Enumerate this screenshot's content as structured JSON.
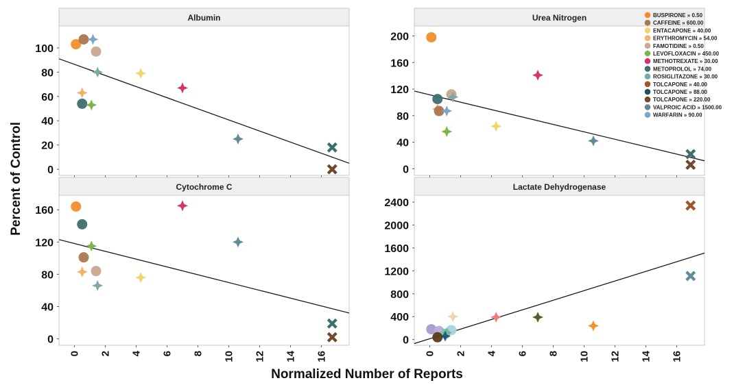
{
  "figure": {
    "ylabel": "Percent of Control",
    "xlabel": "Normalized Number of Reports"
  },
  "legend": {
    "placement": "top-right",
    "entries": [
      {
        "label": "BUSPIRONE » 0.50",
        "color": "#f28e2b"
      },
      {
        "label": "CAFFEINE » 600.00",
        "color": "#a9774f"
      },
      {
        "label": "ENTACAPONE » 40.00",
        "color": "#f2d56b"
      },
      {
        "label": "ERYTHROMYCIN » 54.00",
        "color": "#f5b06a"
      },
      {
        "label": "FAMOTIDINE » 0.50",
        "color": "#c9a690"
      },
      {
        "label": "LEVOFLOXACIN » 450.00",
        "color": "#7ab648"
      },
      {
        "label": "METHOTREXATE » 30.00",
        "color": "#d6336c"
      },
      {
        "label": "METOPROLOL » 74.00",
        "color": "#3f6e6e"
      },
      {
        "label": "ROSIGLITAZONE » 30.00",
        "color": "#7fa7a3"
      },
      {
        "label": "TOLCAPONE » 40.00",
        "color": "#a0562c"
      },
      {
        "label": "TOLCAPONE » 88.00",
        "color": "#264d5a"
      },
      {
        "label": "TOLCAPONE » 220.00",
        "color": "#6e4a2e"
      },
      {
        "label": "VALPROIC ACID » 1500.00",
        "color": "#5f8b96"
      },
      {
        "label": "WARFARIN » 90.00",
        "color": "#7ba6c8"
      }
    ]
  },
  "chart_data": [
    {
      "type": "scatter",
      "title": "Albumin",
      "xlim": [
        -1,
        17.8
      ],
      "ylim": [
        -5,
        118
      ],
      "xticks": [
        0,
        2,
        4,
        6,
        8,
        10,
        12,
        14,
        16
      ],
      "yticks": [
        0,
        20,
        40,
        60,
        80,
        100
      ],
      "trendline": [
        [
          -1,
          91
        ],
        [
          17.8,
          5
        ]
      ],
      "points": [
        {
          "x": 0.1,
          "y": 103,
          "shape": "circle",
          "color": "#f28e2b"
        },
        {
          "x": 0.6,
          "y": 107,
          "shape": "circle",
          "color": "#a9774f"
        },
        {
          "x": 1.2,
          "y": 107,
          "shape": "star",
          "color": "#7ba6c8"
        },
        {
          "x": 1.4,
          "y": 97,
          "shape": "circle",
          "color": "#c9a690"
        },
        {
          "x": 1.5,
          "y": 80,
          "shape": "star",
          "color": "#7fa7a3"
        },
        {
          "x": 4.3,
          "y": 79,
          "shape": "star",
          "color": "#f2d56b"
        },
        {
          "x": 7.0,
          "y": 67,
          "shape": "star",
          "color": "#d6336c"
        },
        {
          "x": 0.5,
          "y": 63,
          "shape": "star",
          "color": "#f5b06a"
        },
        {
          "x": 0.5,
          "y": 54,
          "shape": "circle",
          "color": "#3f6e6e"
        },
        {
          "x": 1.1,
          "y": 53,
          "shape": "star",
          "color": "#7ab648"
        },
        {
          "x": 10.6,
          "y": 25,
          "shape": "star",
          "color": "#5f8b96"
        },
        {
          "x": 16.7,
          "y": 18,
          "shape": "x",
          "color": "#3f6e6e"
        },
        {
          "x": 16.7,
          "y": 0,
          "shape": "x",
          "color": "#6e4a2e"
        }
      ]
    },
    {
      "type": "scatter",
      "title": "Urea Nitrogen",
      "xlim": [
        -1,
        17.8
      ],
      "ylim": [
        -10,
        215
      ],
      "xticks": [
        0,
        2,
        4,
        6,
        8,
        10,
        12,
        14,
        16
      ],
      "yticks": [
        0,
        40,
        80,
        120,
        160,
        200
      ],
      "trendline": [
        [
          -1,
          117
        ],
        [
          17.8,
          12
        ]
      ],
      "points": [
        {
          "x": 0.1,
          "y": 198,
          "shape": "circle",
          "color": "#f28e2b"
        },
        {
          "x": 7.0,
          "y": 141,
          "shape": "star",
          "color": "#d6336c"
        },
        {
          "x": 1.4,
          "y": 112,
          "shape": "circle",
          "color": "#c9a690"
        },
        {
          "x": 1.5,
          "y": 108,
          "shape": "star",
          "color": "#7fa7a3"
        },
        {
          "x": 0.5,
          "y": 105,
          "shape": "circle",
          "color": "#3f6e6e"
        },
        {
          "x": 0.5,
          "y": 90,
          "shape": "star",
          "color": "#f5b06a"
        },
        {
          "x": 0.6,
          "y": 87,
          "shape": "circle",
          "color": "#a9774f"
        },
        {
          "x": 1.1,
          "y": 87,
          "shape": "star",
          "color": "#7ba6c8"
        },
        {
          "x": 4.3,
          "y": 64,
          "shape": "star",
          "color": "#f2d56b"
        },
        {
          "x": 1.1,
          "y": 56,
          "shape": "star",
          "color": "#7ab648"
        },
        {
          "x": 10.6,
          "y": 42,
          "shape": "star",
          "color": "#5f8b96"
        },
        {
          "x": 16.9,
          "y": 22,
          "shape": "x",
          "color": "#3f6e6e"
        },
        {
          "x": 16.9,
          "y": 6,
          "shape": "x",
          "color": "#6e4a2e"
        }
      ]
    },
    {
      "type": "scatter",
      "title": "Cytochrome C",
      "xlim": [
        -1,
        17.8
      ],
      "ylim": [
        -8,
        178
      ],
      "xticks": [
        0,
        2,
        4,
        6,
        8,
        10,
        12,
        14,
        16
      ],
      "yticks": [
        0,
        40,
        80,
        120,
        160
      ],
      "trendline": [
        [
          -1,
          123
        ],
        [
          17.8,
          32
        ]
      ],
      "points": [
        {
          "x": 0.1,
          "y": 164,
          "shape": "circle",
          "color": "#f28e2b"
        },
        {
          "x": 7.0,
          "y": 165,
          "shape": "star",
          "color": "#d6336c"
        },
        {
          "x": 0.5,
          "y": 142,
          "shape": "circle",
          "color": "#3f6e6e"
        },
        {
          "x": 1.1,
          "y": 115,
          "shape": "star",
          "color": "#7ab648"
        },
        {
          "x": 10.6,
          "y": 120,
          "shape": "star",
          "color": "#5f8b96"
        },
        {
          "x": 0.6,
          "y": 101,
          "shape": "circle",
          "color": "#a9774f"
        },
        {
          "x": 1.4,
          "y": 84,
          "shape": "circle",
          "color": "#c9a690"
        },
        {
          "x": 0.5,
          "y": 83,
          "shape": "star",
          "color": "#f5b06a"
        },
        {
          "x": 4.3,
          "y": 76,
          "shape": "star",
          "color": "#f2d56b"
        },
        {
          "x": 1.5,
          "y": 66,
          "shape": "star",
          "color": "#7fa7a3"
        },
        {
          "x": 16.7,
          "y": 19,
          "shape": "x",
          "color": "#3f6e6e"
        },
        {
          "x": 16.7,
          "y": 2,
          "shape": "x",
          "color": "#6e4a2e"
        }
      ]
    },
    {
      "type": "scatter",
      "title": "Lactate Dehydrogenase",
      "xlim": [
        -1,
        17.8
      ],
      "ylim": [
        -100,
        2520
      ],
      "xticks": [
        0,
        2,
        4,
        6,
        8,
        10,
        12,
        14,
        16
      ],
      "yticks": [
        0,
        400,
        800,
        1200,
        1600,
        2000,
        2400
      ],
      "trendline": [
        [
          -1,
          -70
        ],
        [
          17.8,
          1510
        ]
      ],
      "points": [
        {
          "x": 16.9,
          "y": 2340,
          "shape": "x",
          "color": "#a0562c"
        },
        {
          "x": 16.9,
          "y": 1110,
          "shape": "x",
          "color": "#5f8b96"
        },
        {
          "x": 1.5,
          "y": 400,
          "shape": "star",
          "color": "#f2d2b0"
        },
        {
          "x": 4.3,
          "y": 390,
          "shape": "star",
          "color": "#ef7b7b"
        },
        {
          "x": 7.0,
          "y": 390,
          "shape": "star",
          "color": "#5a5a2e"
        },
        {
          "x": 10.6,
          "y": 240,
          "shape": "star",
          "color": "#f28e2b"
        },
        {
          "x": 0.1,
          "y": 180,
          "shape": "circle",
          "color": "#a79bd0"
        },
        {
          "x": 0.6,
          "y": 150,
          "shape": "circle",
          "color": "#b9a9df"
        },
        {
          "x": 1.4,
          "y": 165,
          "shape": "circle",
          "color": "#a8d4dc"
        },
        {
          "x": 1.0,
          "y": 100,
          "shape": "circle",
          "color": "#7cc5a8"
        },
        {
          "x": 1.1,
          "y": 120,
          "shape": "star",
          "color": "#6fb89b"
        },
        {
          "x": 1.0,
          "y": 60,
          "shape": "star",
          "color": "#1e5a7a"
        },
        {
          "x": 0.5,
          "y": 40,
          "shape": "circle",
          "color": "#5b3a1a"
        }
      ]
    }
  ]
}
